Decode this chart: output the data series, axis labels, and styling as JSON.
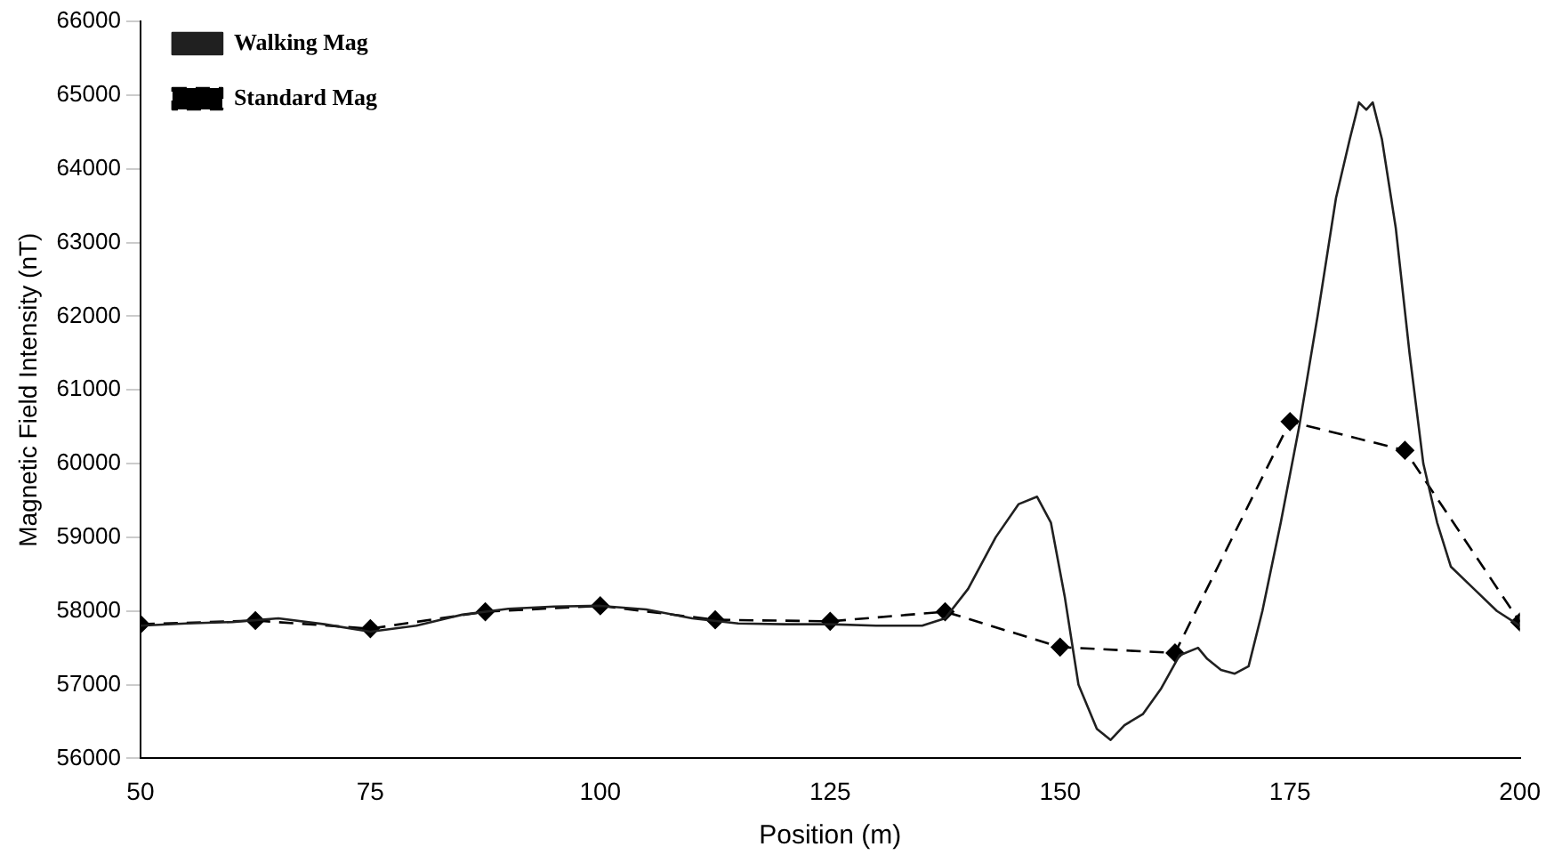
{
  "chart_data": {
    "type": "line",
    "xlabel": "Position (m)",
    "ylabel": "Magnetic Field Intensity (nT)",
    "xlim": [
      50,
      200
    ],
    "xticks": [
      50,
      75,
      100,
      125,
      150,
      175,
      200
    ],
    "ylim": [
      56000,
      66000
    ],
    "yticks": [
      56000,
      57000,
      58000,
      59000,
      60000,
      61000,
      62000,
      63000,
      64000,
      65000,
      66000
    ],
    "grid": false,
    "legend": "top left",
    "series": [
      {
        "name": "Walking Mag",
        "color": "#202020",
        "marker": "none",
        "line_style": "solid",
        "x": [
          50,
          55,
          60,
          65,
          70,
          75,
          80,
          85,
          90,
          95,
          100,
          105,
          110,
          115,
          120,
          125,
          130,
          135,
          137.5,
          140,
          143,
          145.5,
          147.5,
          149,
          150.5,
          152,
          154,
          155.5,
          157,
          159,
          161,
          163,
          165,
          166,
          167.5,
          169,
          170.5,
          172,
          174,
          176,
          178,
          180,
          181.5,
          182.5,
          183.3,
          184,
          185,
          186.5,
          188,
          189.5,
          191,
          192.5,
          195,
          197.5,
          200
        ],
        "values": [
          57800,
          57830,
          57850,
          57900,
          57820,
          57720,
          57800,
          57950,
          58030,
          58060,
          58070,
          58020,
          57900,
          57830,
          57820,
          57820,
          57800,
          57800,
          57900,
          58300,
          59000,
          59450,
          59550,
          59200,
          58200,
          57000,
          56400,
          56250,
          56450,
          56600,
          56950,
          57400,
          57500,
          57350,
          57200,
          57150,
          57250,
          58000,
          59200,
          60500,
          62000,
          63600,
          64400,
          64900,
          64800,
          64900,
          64400,
          63200,
          61500,
          60000,
          59200,
          58600,
          58300,
          58000,
          57800
        ]
      },
      {
        "name": "Standard Mag",
        "color": "#000000",
        "marker": "diamond",
        "line_style": "dashed",
        "x": [
          50,
          62.5,
          75,
          87.5,
          100,
          112.5,
          125,
          137.5,
          150,
          162.5,
          175,
          187.5,
          200
        ],
        "values": [
          57820,
          57870,
          57760,
          57990,
          58070,
          57880,
          57860,
          57990,
          57510,
          57430,
          60570,
          60180,
          57850
        ]
      }
    ]
  }
}
